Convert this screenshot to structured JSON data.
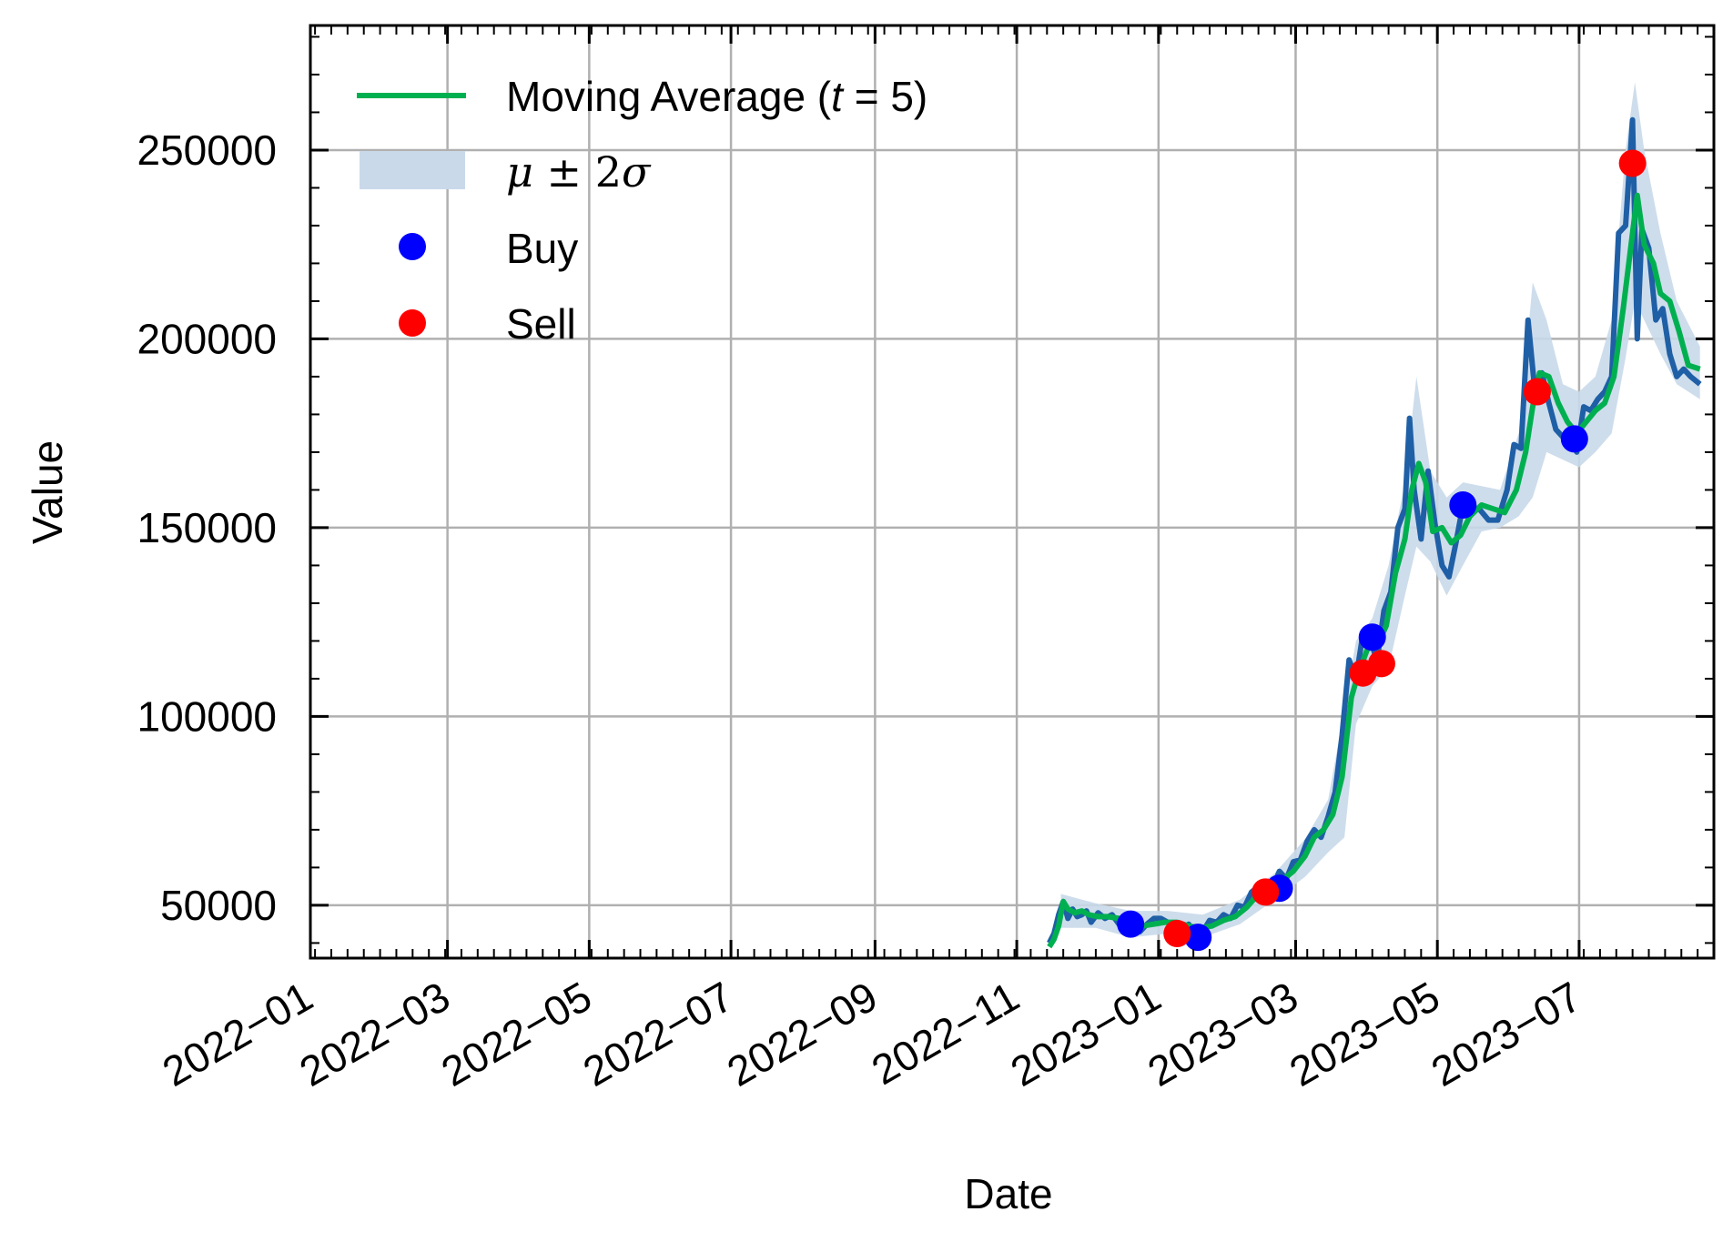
{
  "chart_data": {
    "type": "line",
    "xlabel": "Date",
    "ylabel": "Value",
    "x_tick_labels": [
      "2022−01",
      "2022−03",
      "2022−05",
      "2022−07",
      "2022−09",
      "2022−11",
      "2023−01",
      "2023−03",
      "2023−05",
      "2023−07"
    ],
    "y_tick_labels": [
      "50000",
      "100000",
      "150000",
      "200000",
      "250000"
    ],
    "xlim": [
      "2022-01-01",
      "2023-08-28"
    ],
    "ylim": [
      36000,
      283000
    ],
    "grid": true,
    "legend_position": "top-left",
    "legend": {
      "ma": {
        "label": "Moving Average (",
        "var": "t",
        "rest": " = 5)"
      },
      "band": {
        "mu": "μ",
        "pm": " ± 2",
        "sigma": "σ"
      },
      "buy": "Buy",
      "sell": "Sell"
    },
    "colors": {
      "price": "#1f5fa6",
      "moving_average": "#00b050",
      "band": "#c9d9ea",
      "buy": "#0000ff",
      "sell": "#ff0000",
      "grid": "#b0b0b0"
    },
    "price": [
      [
        "2022-11-15",
        40000
      ],
      [
        "2022-11-17",
        42500
      ],
      [
        "2022-11-19",
        47500
      ],
      [
        "2022-11-21",
        51000
      ],
      [
        "2022-11-23",
        46500
      ],
      [
        "2022-11-25",
        49000
      ],
      [
        "2022-11-27",
        47000
      ],
      [
        "2022-11-29",
        47500
      ],
      [
        "2022-12-01",
        48500
      ],
      [
        "2022-12-03",
        45500
      ],
      [
        "2022-12-06",
        48000
      ],
      [
        "2022-12-09",
        46500
      ],
      [
        "2022-12-12",
        47500
      ],
      [
        "2022-12-15",
        45000
      ],
      [
        "2022-12-18",
        46500
      ],
      [
        "2022-12-21",
        44000
      ],
      [
        "2022-12-24",
        43000
      ],
      [
        "2022-12-27",
        45000
      ],
      [
        "2022-12-30",
        46500
      ],
      [
        "2023-01-02",
        46500
      ],
      [
        "2023-01-05",
        45500
      ],
      [
        "2023-01-08",
        44000
      ],
      [
        "2023-01-11",
        43500
      ],
      [
        "2023-01-14",
        45000
      ],
      [
        "2023-01-17",
        42000
      ],
      [
        "2023-01-20",
        43000
      ],
      [
        "2023-01-23",
        46000
      ],
      [
        "2023-01-26",
        45500
      ],
      [
        "2023-01-29",
        47500
      ],
      [
        "2023-02-01",
        46500
      ],
      [
        "2023-02-04",
        50000
      ],
      [
        "2023-02-07",
        49500
      ],
      [
        "2023-02-10",
        53500
      ],
      [
        "2023-02-13",
        55000
      ],
      [
        "2023-02-16",
        55500
      ],
      [
        "2023-02-19",
        54500
      ],
      [
        "2023-02-22",
        59000
      ],
      [
        "2023-02-25",
        57000
      ],
      [
        "2023-02-28",
        61500
      ],
      [
        "2023-03-03",
        62000
      ],
      [
        "2023-03-06",
        67000
      ],
      [
        "2023-03-09",
        70000
      ],
      [
        "2023-03-12",
        68000
      ],
      [
        "2023-03-15",
        73500
      ],
      [
        "2023-03-18",
        80000
      ],
      [
        "2023-03-21",
        95000
      ],
      [
        "2023-03-24",
        115000
      ],
      [
        "2023-03-27",
        110000
      ],
      [
        "2023-03-30",
        122000
      ],
      [
        "2023-04-02",
        121000
      ],
      [
        "2023-04-05",
        114500
      ],
      [
        "2023-04-08",
        128000
      ],
      [
        "2023-04-11",
        133000
      ],
      [
        "2023-04-14",
        150000
      ],
      [
        "2023-04-17",
        155000
      ],
      [
        "2023-04-19",
        179000
      ],
      [
        "2023-04-21",
        160000
      ],
      [
        "2023-04-24",
        147000
      ],
      [
        "2023-04-27",
        165000
      ],
      [
        "2023-04-30",
        151000
      ],
      [
        "2023-05-03",
        140000
      ],
      [
        "2023-05-06",
        137000
      ],
      [
        "2023-05-09",
        146000
      ],
      [
        "2023-05-12",
        156000
      ],
      [
        "2023-05-15",
        155500
      ],
      [
        "2023-05-19",
        155000
      ],
      [
        "2023-05-23",
        152000
      ],
      [
        "2023-05-27",
        152000
      ],
      [
        "2023-05-31",
        160000
      ],
      [
        "2023-06-03",
        172000
      ],
      [
        "2023-06-06",
        171000
      ],
      [
        "2023-06-09",
        205000
      ],
      [
        "2023-06-12",
        186000
      ],
      [
        "2023-06-15",
        191000
      ],
      [
        "2023-06-18",
        183000
      ],
      [
        "2023-06-21",
        176000
      ],
      [
        "2023-06-24",
        174000
      ],
      [
        "2023-06-27",
        173500
      ],
      [
        "2023-06-30",
        170000
      ],
      [
        "2023-07-03",
        182000
      ],
      [
        "2023-07-06",
        181000
      ],
      [
        "2023-07-09",
        184000
      ],
      [
        "2023-07-12",
        186000
      ],
      [
        "2023-07-15",
        190000
      ],
      [
        "2023-07-18",
        228000
      ],
      [
        "2023-07-21",
        230000
      ],
      [
        "2023-07-24",
        258000
      ],
      [
        "2023-07-26",
        200000
      ],
      [
        "2023-07-28",
        229000
      ],
      [
        "2023-07-31",
        224000
      ],
      [
        "2023-08-03",
        205000
      ],
      [
        "2023-08-06",
        208000
      ],
      [
        "2023-08-09",
        196000
      ],
      [
        "2023-08-12",
        190000
      ],
      [
        "2023-08-15",
        192000
      ],
      [
        "2023-08-18",
        190000
      ],
      [
        "2023-08-22",
        188000
      ]
    ],
    "moving_average": [
      [
        "2022-11-15",
        39000
      ],
      [
        "2022-11-17",
        41000
      ],
      [
        "2022-11-19",
        44500
      ],
      [
        "2022-11-21",
        51000
      ],
      [
        "2022-11-23",
        49000
      ],
      [
        "2022-11-26",
        48000
      ],
      [
        "2022-11-29",
        48500
      ],
      [
        "2022-12-02",
        47500
      ],
      [
        "2022-12-06",
        47000
      ],
      [
        "2022-12-10",
        47000
      ],
      [
        "2022-12-15",
        46500
      ],
      [
        "2022-12-20",
        45500
      ],
      [
        "2022-12-25",
        44500
      ],
      [
        "2022-12-30",
        45000
      ],
      [
        "2023-01-04",
        45500
      ],
      [
        "2023-01-09",
        45500
      ],
      [
        "2023-01-14",
        44500
      ],
      [
        "2023-01-19",
        44000
      ],
      [
        "2023-01-24",
        44500
      ],
      [
        "2023-01-29",
        46000
      ],
      [
        "2023-02-03",
        47000
      ],
      [
        "2023-02-08",
        49500
      ],
      [
        "2023-02-13",
        53000
      ],
      [
        "2023-02-18",
        54500
      ],
      [
        "2023-02-23",
        56500
      ],
      [
        "2023-02-28",
        59000
      ],
      [
        "2023-03-05",
        63000
      ],
      [
        "2023-03-09",
        68000
      ],
      [
        "2023-03-13",
        70000
      ],
      [
        "2023-03-17",
        74000
      ],
      [
        "2023-03-21",
        84000
      ],
      [
        "2023-03-25",
        105000
      ],
      [
        "2023-03-28",
        111500
      ],
      [
        "2023-04-01",
        118000
      ],
      [
        "2023-04-05",
        118500
      ],
      [
        "2023-04-09",
        124000
      ],
      [
        "2023-04-13",
        138000
      ],
      [
        "2023-04-17",
        147000
      ],
      [
        "2023-04-20",
        160000
      ],
      [
        "2023-04-23",
        167000
      ],
      [
        "2023-04-26",
        162000
      ],
      [
        "2023-04-29",
        149000
      ],
      [
        "2023-05-03",
        150000
      ],
      [
        "2023-05-07",
        146000
      ],
      [
        "2023-05-11",
        148000
      ],
      [
        "2023-05-15",
        153000
      ],
      [
        "2023-05-20",
        156000
      ],
      [
        "2023-05-25",
        155000
      ],
      [
        "2023-05-30",
        154000
      ],
      [
        "2023-06-04",
        160000
      ],
      [
        "2023-06-08",
        170000
      ],
      [
        "2023-06-11",
        182000
      ],
      [
        "2023-06-14",
        191000
      ],
      [
        "2023-06-18",
        190000
      ],
      [
        "2023-06-22",
        183000
      ],
      [
        "2023-06-26",
        178000
      ],
      [
        "2023-06-30",
        175000
      ],
      [
        "2023-07-04",
        178000
      ],
      [
        "2023-07-08",
        181000
      ],
      [
        "2023-07-12",
        183000
      ],
      [
        "2023-07-16",
        190000
      ],
      [
        "2023-07-20",
        208000
      ],
      [
        "2023-07-24",
        228000
      ],
      [
        "2023-07-26",
        238000
      ],
      [
        "2023-07-29",
        225000
      ],
      [
        "2023-08-02",
        220000
      ],
      [
        "2023-08-05",
        212000
      ],
      [
        "2023-08-09",
        210000
      ],
      [
        "2023-08-13",
        202000
      ],
      [
        "2023-08-17",
        193000
      ],
      [
        "2023-08-22",
        192000
      ]
    ],
    "band": [
      [
        "2022-11-20",
        44000,
        53000
      ],
      [
        "2022-12-05",
        44000,
        50500
      ],
      [
        "2022-12-20",
        41500,
        48500
      ],
      [
        "2023-01-05",
        42500,
        48500
      ],
      [
        "2023-01-20",
        41500,
        47500
      ],
      [
        "2023-02-05",
        45000,
        51500
      ],
      [
        "2023-02-20",
        51500,
        58500
      ],
      [
        "2023-03-05",
        57500,
        67500
      ],
      [
        "2023-03-15",
        64000,
        78000
      ],
      [
        "2023-03-22",
        68000,
        102000
      ],
      [
        "2023-03-27",
        98000,
        120000
      ],
      [
        "2023-04-03",
        108000,
        126000
      ],
      [
        "2023-04-10",
        113000,
        140000
      ],
      [
        "2023-04-17",
        132000,
        162000
      ],
      [
        "2023-04-22",
        145000,
        190000
      ],
      [
        "2023-04-28",
        141000,
        165000
      ],
      [
        "2023-05-05",
        132000,
        158000
      ],
      [
        "2023-05-12",
        140000,
        162000
      ],
      [
        "2023-05-20",
        149000,
        161000
      ],
      [
        "2023-05-28",
        150000,
        160000
      ],
      [
        "2023-06-05",
        153000,
        175000
      ],
      [
        "2023-06-11",
        158000,
        215000
      ],
      [
        "2023-06-17",
        170000,
        205000
      ],
      [
        "2023-06-24",
        168000,
        188000
      ],
      [
        "2023-07-01",
        166000,
        186000
      ],
      [
        "2023-07-08",
        170000,
        190000
      ],
      [
        "2023-07-15",
        175000,
        205000
      ],
      [
        "2023-07-21",
        195000,
        250000
      ],
      [
        "2023-07-25",
        210000,
        268000
      ],
      [
        "2023-07-29",
        205000,
        250000
      ],
      [
        "2023-08-05",
        196000,
        228000
      ],
      [
        "2023-08-12",
        188000,
        210000
      ],
      [
        "2023-08-22",
        184000,
        198000
      ]
    ],
    "buy_points": [
      [
        "2022-12-20",
        45000
      ],
      [
        "2023-01-18",
        41500
      ],
      [
        "2023-02-22",
        54500
      ],
      [
        "2023-04-03",
        121000
      ],
      [
        "2023-05-12",
        156000
      ],
      [
        "2023-06-29",
        173500
      ]
    ],
    "sell_points": [
      [
        "2023-01-09",
        42500
      ],
      [
        "2023-02-16",
        53500
      ],
      [
        "2023-03-30",
        111500
      ],
      [
        "2023-04-07",
        114000
      ],
      [
        "2023-06-13",
        186000
      ],
      [
        "2023-07-24",
        246500
      ]
    ]
  }
}
